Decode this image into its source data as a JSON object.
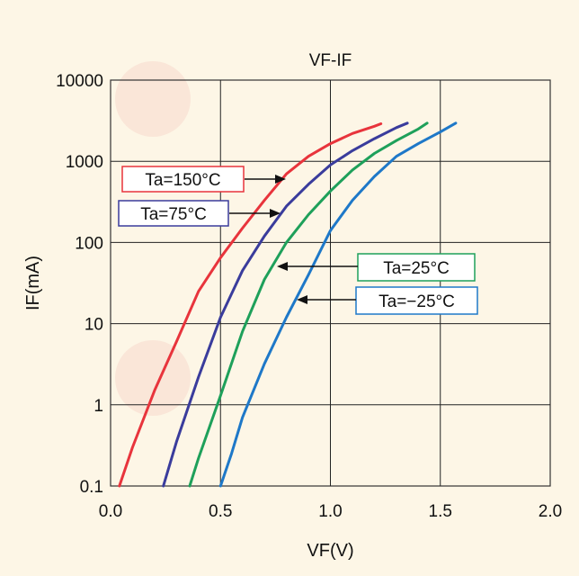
{
  "chart_data": {
    "type": "line",
    "title": "VF-IF",
    "xlabel": "VF(V)",
    "ylabel": "IF(mA)",
    "xlim": [
      0.0,
      2.0
    ],
    "ylim": [
      0.1,
      10000
    ],
    "yscale": "log",
    "xticks": [
      0.0,
      0.5,
      1.0,
      1.5,
      2.0
    ],
    "xtick_labels": [
      "0.0",
      "0.5",
      "1.0",
      "1.5",
      "2.0"
    ],
    "yticks": [
      0.1,
      1,
      10,
      100,
      1000,
      10000
    ],
    "ytick_labels": [
      "0.1",
      "1",
      "10",
      "100",
      "1000",
      "10000"
    ],
    "grid": true,
    "series": [
      {
        "name": "Ta=150°C",
        "color": "#e8343c",
        "x": [
          0.04,
          0.1,
          0.2,
          0.3,
          0.4,
          0.5,
          0.6,
          0.7,
          0.8,
          0.9,
          1.0,
          1.1,
          1.2,
          1.23
        ],
        "y": [
          0.1,
          0.3,
          1.5,
          6,
          25,
          65,
          150,
          330,
          700,
          1150,
          1650,
          2200,
          2700,
          2900
        ]
      },
      {
        "name": "Ta=75°C",
        "color": "#3a3c9c",
        "x": [
          0.24,
          0.3,
          0.4,
          0.5,
          0.6,
          0.7,
          0.8,
          0.9,
          1.0,
          1.1,
          1.2,
          1.3,
          1.35
        ],
        "y": [
          0.1,
          0.35,
          2.2,
          12,
          45,
          120,
          280,
          520,
          900,
          1350,
          1900,
          2600,
          2950
        ]
      },
      {
        "name": "Ta=25°C",
        "color": "#1ea05a",
        "x": [
          0.36,
          0.4,
          0.5,
          0.6,
          0.7,
          0.8,
          0.9,
          1.0,
          1.1,
          1.2,
          1.3,
          1.4,
          1.44
        ],
        "y": [
          0.1,
          0.22,
          1.3,
          8,
          35,
          100,
          220,
          430,
          780,
          1250,
          1800,
          2500,
          2950
        ]
      },
      {
        "name": "Ta=−25°C",
        "color": "#1e78c8",
        "x": [
          0.5,
          0.55,
          0.6,
          0.7,
          0.8,
          0.9,
          1.0,
          1.1,
          1.2,
          1.3,
          1.4,
          1.5,
          1.57
        ],
        "y": [
          0.1,
          0.25,
          0.7,
          3.2,
          12,
          40,
          140,
          330,
          650,
          1150,
          1650,
          2300,
          2950
        ]
      }
    ],
    "annotations": [
      {
        "text": "Ta=150°C",
        "series": 0
      },
      {
        "text": "Ta=75°C",
        "series": 1
      },
      {
        "text": "Ta=25°C",
        "series": 2
      },
      {
        "text": "Ta=−25°C",
        "series": 3
      }
    ]
  }
}
